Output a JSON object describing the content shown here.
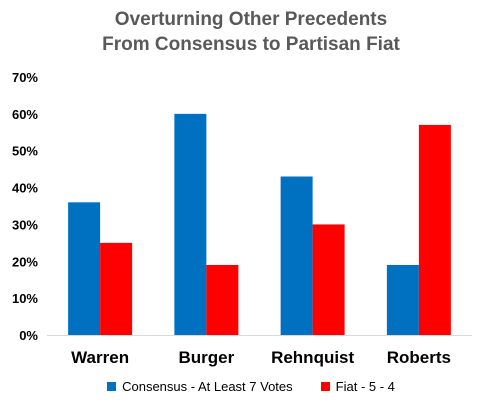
{
  "chart_data": {
    "type": "bar",
    "title": "Overturning Other Precedents",
    "subtitle": "From Consensus to Partisan Fiat",
    "categories": [
      "Warren",
      "Burger",
      "Rehnquist",
      "Roberts"
    ],
    "series": [
      {
        "name": "Consensus - At Least 7 Votes",
        "color": "#0070C0",
        "values": [
          36,
          60,
          43,
          19
        ]
      },
      {
        "name": "Fiat - 5 - 4",
        "color": "#FF0000",
        "values": [
          25,
          19,
          30,
          57
        ]
      }
    ],
    "ylim": [
      0,
      70
    ],
    "yticks": [
      "0%",
      "10%",
      "20%",
      "30%",
      "40%",
      "50%",
      "60%",
      "70%"
    ],
    "grid": false,
    "legend_position": "bottom"
  }
}
